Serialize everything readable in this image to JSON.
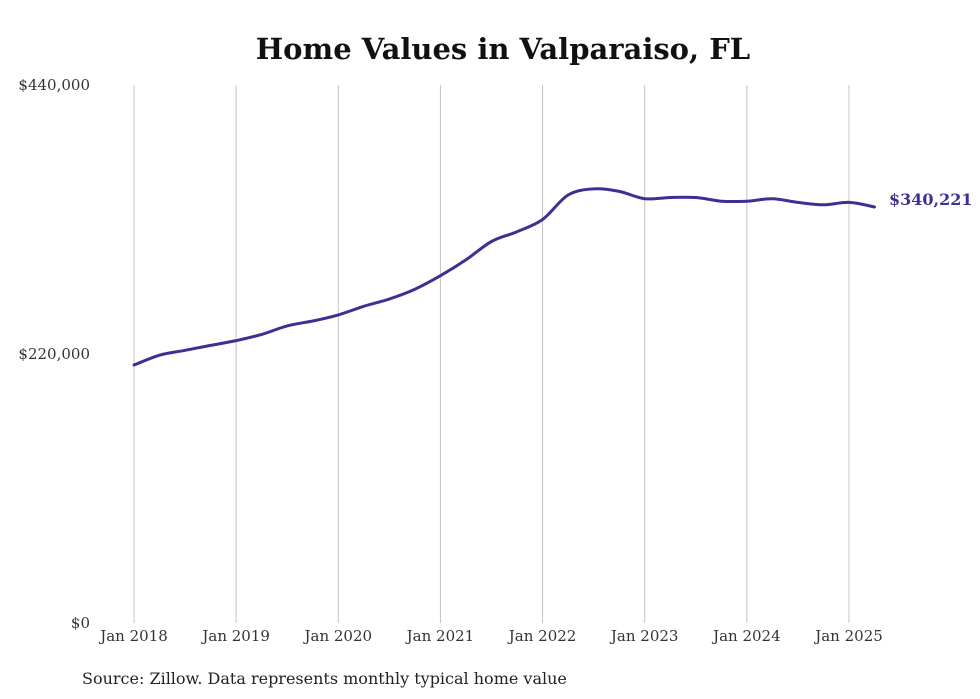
{
  "chart_data": {
    "type": "line",
    "title": "Home Values in Valparaiso, FL",
    "xlabel": "",
    "ylabel": "",
    "ylim": [
      0,
      440000
    ],
    "xlim": [
      "2018-01",
      "2025-04"
    ],
    "y_ticks": [
      0,
      220000,
      440000
    ],
    "y_tick_labels": [
      "$0",
      "$220,000",
      "$440,000"
    ],
    "x_ticks": [
      "2018-01",
      "2019-01",
      "2020-01",
      "2021-01",
      "2022-01",
      "2023-01",
      "2024-01",
      "2025-01"
    ],
    "x_tick_labels": [
      "Jan 2018",
      "Jan 2019",
      "Jan 2020",
      "Jan 2021",
      "Jan 2022",
      "Jan 2023",
      "Jan 2024",
      "Jan 2025"
    ],
    "grid": "vertical",
    "legend": "none",
    "line_color": "#3b3194",
    "series": [
      {
        "x": [
          "2018-01",
          "2018-04",
          "2018-07",
          "2018-10",
          "2019-01",
          "2019-04",
          "2019-07",
          "2019-10",
          "2020-01",
          "2020-04",
          "2020-07",
          "2020-10",
          "2021-01",
          "2021-04",
          "2021-07",
          "2021-10",
          "2022-01",
          "2022-04",
          "2022-07",
          "2022-10",
          "2023-01",
          "2023-04",
          "2023-07",
          "2023-10",
          "2024-01",
          "2024-04",
          "2024-07",
          "2024-10",
          "2025-01",
          "2025-04"
        ],
        "y": [
          211000,
          219000,
          223000,
          227000,
          231000,
          236000,
          243000,
          247000,
          252000,
          259000,
          265000,
          273000,
          284000,
          297000,
          312000,
          320000,
          330000,
          350000,
          355000,
          353000,
          347000,
          348000,
          348000,
          345000,
          345000,
          347000,
          344000,
          342000,
          344000,
          340221
        ]
      }
    ],
    "end_label": "$340,221",
    "source": "Source: Zillow. Data represents monthly typical home value"
  }
}
